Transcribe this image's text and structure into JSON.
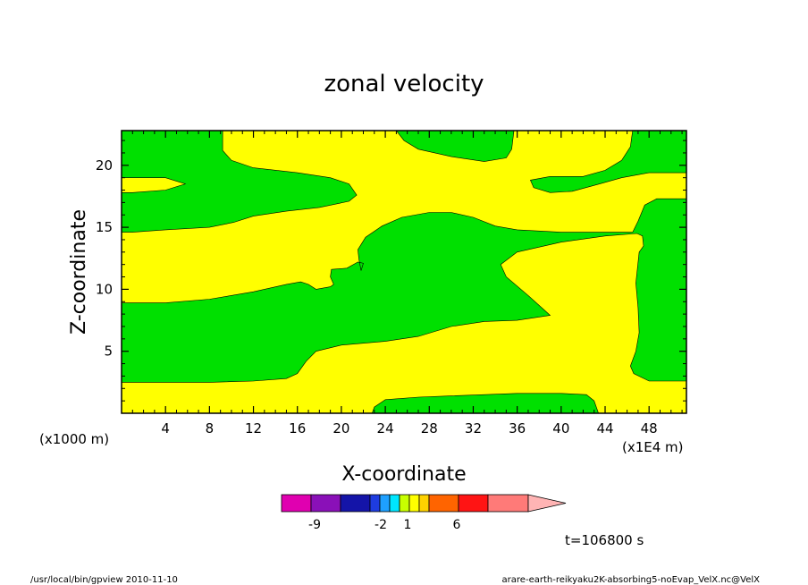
{
  "chart_data": {
    "type": "heatmap",
    "title": "zonal velocity",
    "xlabel": "X-coordinate",
    "ylabel": "Z-coordinate",
    "x_unit": "(x1E4 m)",
    "y_unit": "(x1000 m)",
    "x_ticks": [
      "4",
      "8",
      "12",
      "16",
      "20",
      "24",
      "28",
      "32",
      "36",
      "40",
      "44",
      "48"
    ],
    "y_ticks": [
      "5",
      "10",
      "15",
      "20"
    ],
    "xlim": [
      0,
      51.4
    ],
    "ylim": [
      0,
      22.8
    ],
    "colorbar": {
      "colors": [
        "#e000b0",
        "#8a10b8",
        "#1414a8",
        "#1e3ce0",
        "#1ea0ff",
        "#00e6ff",
        "#c8ff00",
        "#ffff00",
        "#ffd200",
        "#ff9b00",
        "#ff6400",
        "#ff1414",
        "#ff7a78",
        "#ffb4b4"
      ],
      "labels": [
        "-9",
        "-2",
        "1",
        "6"
      ]
    },
    "regions": [
      {
        "color": "#00e000",
        "polygon": [
          [
            0,
            22.8
          ],
          [
            9.2,
            22.8
          ],
          [
            9.2,
            21.2
          ],
          [
            10,
            20.4
          ],
          [
            12,
            19.8
          ],
          [
            16,
            19.4
          ],
          [
            19,
            19
          ],
          [
            20.7,
            18.5
          ],
          [
            21.4,
            17.6
          ],
          [
            20.7,
            17.1
          ],
          [
            18,
            16.6
          ],
          [
            15,
            16.3
          ],
          [
            12,
            15.9
          ],
          [
            10.2,
            15.4
          ],
          [
            8,
            15
          ],
          [
            4,
            14.8
          ],
          [
            1,
            14.6
          ],
          [
            0,
            14.6
          ]
        ]
      },
      {
        "color": "#ffff00",
        "polygon": [
          [
            0,
            19
          ],
          [
            4,
            19
          ],
          [
            5.8,
            18.5
          ],
          [
            4,
            18
          ],
          [
            1,
            17.8
          ],
          [
            0,
            17.8
          ]
        ]
      },
      {
        "color": "#00e000",
        "polygon": [
          [
            25,
            22.8
          ],
          [
            35.7,
            22.8
          ],
          [
            35.5,
            21.3
          ],
          [
            35,
            20.6
          ],
          [
            33,
            20.3
          ],
          [
            30,
            20.7
          ],
          [
            27,
            21.3
          ],
          [
            25.7,
            22
          ],
          [
            25,
            22.8
          ]
        ]
      },
      {
        "color": "#00e000",
        "polygon": [
          [
            46.5,
            22.8
          ],
          [
            46.3,
            21.5
          ],
          [
            45.5,
            20.4
          ],
          [
            44,
            19.6
          ],
          [
            42,
            19.1
          ],
          [
            39,
            19.1
          ],
          [
            37.2,
            18.8
          ],
          [
            37.5,
            18.2
          ],
          [
            39,
            17.8
          ],
          [
            41,
            17.9
          ],
          [
            43.5,
            18.5
          ],
          [
            45.5,
            19
          ],
          [
            48,
            19.4
          ],
          [
            51.4,
            19.4
          ],
          [
            51.4,
            22.8
          ]
        ]
      },
      {
        "color": "#00e000",
        "polygon": [
          [
            0,
            8.9
          ],
          [
            4,
            8.9
          ],
          [
            8,
            9.2
          ],
          [
            12,
            9.8
          ],
          [
            15,
            10.4
          ],
          [
            16.3,
            10.6
          ],
          [
            17,
            10.4
          ],
          [
            17.7,
            10
          ],
          [
            19,
            10.2
          ],
          [
            19.3,
            10.4
          ],
          [
            19,
            11
          ],
          [
            19.1,
            11.6
          ],
          [
            20.5,
            11.7
          ],
          [
            21.5,
            12.2
          ],
          [
            22,
            12.1
          ],
          [
            21.8,
            11.5
          ],
          [
            21.6,
            12.4
          ],
          [
            21.5,
            13.2
          ],
          [
            22.2,
            14.2
          ],
          [
            23.7,
            15.1
          ],
          [
            25.5,
            15.8
          ],
          [
            28,
            16.2
          ],
          [
            30,
            16.2
          ],
          [
            32,
            15.8
          ],
          [
            34,
            15.1
          ],
          [
            36,
            14.8
          ],
          [
            40,
            14.6
          ],
          [
            46.5,
            14.6
          ],
          [
            47,
            15.5
          ],
          [
            47.6,
            16.8
          ],
          [
            48.7,
            17.3
          ],
          [
            51.4,
            17.3
          ],
          [
            51.4,
            2.6
          ],
          [
            48,
            2.6
          ],
          [
            46.6,
            3.2
          ],
          [
            46.3,
            3.8
          ],
          [
            46.8,
            5
          ],
          [
            47.1,
            6.5
          ],
          [
            47,
            8.5
          ],
          [
            46.8,
            10.5
          ],
          [
            47.1,
            13
          ],
          [
            47.5,
            13.5
          ],
          [
            47.4,
            14.3
          ],
          [
            46.9,
            14.5
          ],
          [
            44,
            14.3
          ],
          [
            40,
            13.8
          ],
          [
            36,
            13
          ],
          [
            34.5,
            12
          ],
          [
            35,
            11
          ],
          [
            37,
            9.5
          ],
          [
            38.5,
            8.3
          ],
          [
            39,
            7.9
          ],
          [
            36,
            7.5
          ],
          [
            33,
            7.4
          ],
          [
            30,
            7
          ],
          [
            27,
            6.2
          ],
          [
            24,
            5.8
          ],
          [
            20,
            5.5
          ],
          [
            17.7,
            5
          ],
          [
            16.8,
            4.2
          ],
          [
            16,
            3.2
          ],
          [
            15,
            2.8
          ],
          [
            12,
            2.6
          ],
          [
            8,
            2.5
          ],
          [
            4,
            2.5
          ],
          [
            0,
            2.5
          ]
        ]
      },
      {
        "color": "#00e000",
        "polygon": [
          [
            22.8,
            0
          ],
          [
            23,
            0.5
          ],
          [
            24,
            1.1
          ],
          [
            27,
            1.3
          ],
          [
            30,
            1.4
          ],
          [
            33,
            1.5
          ],
          [
            36,
            1.6
          ],
          [
            40,
            1.6
          ],
          [
            42.3,
            1.5
          ],
          [
            43,
            1
          ],
          [
            43.4,
            0
          ]
        ]
      }
    ],
    "base_color": "#ffff00",
    "time_label": "t=106800 s"
  },
  "footer": {
    "left": "/usr/local/bin/gpview  2010-11-10",
    "right": "arare-earth-reikyaku2K-absorbing5-noEvap_VelX.nc@VelX"
  }
}
